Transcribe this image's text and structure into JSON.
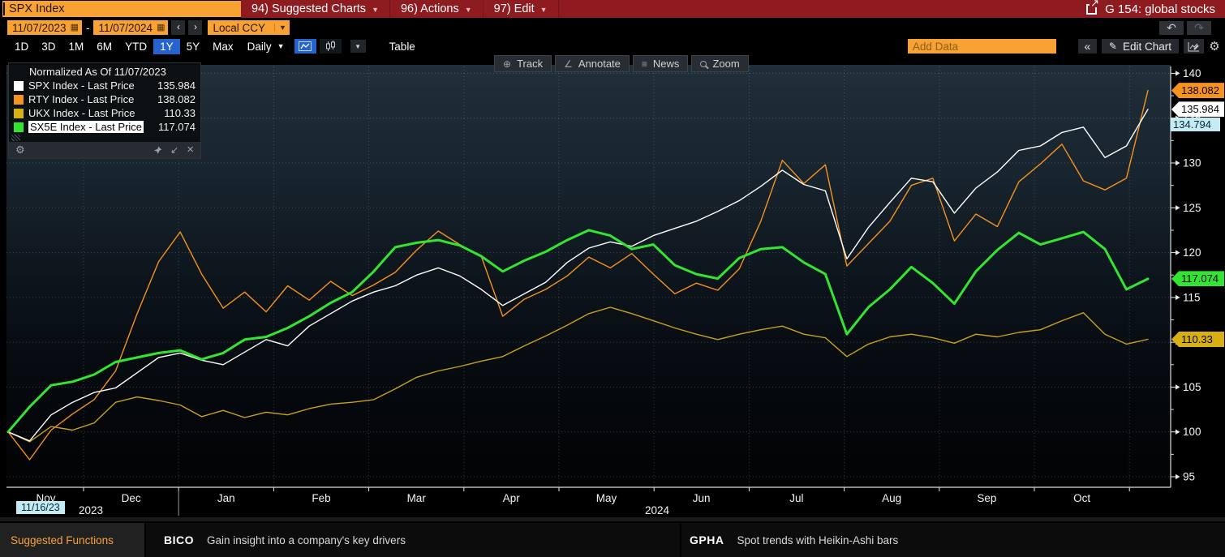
{
  "titlebar": {
    "ticker": "SPX Index",
    "menu": [
      {
        "label": "94) Suggested Charts"
      },
      {
        "label": "96) Actions"
      },
      {
        "label": "97) Edit"
      }
    ],
    "page_tag": "G 154: global stocks"
  },
  "datebar": {
    "start": "11/07/2023",
    "dash": "-",
    "end": "11/07/2024",
    "ccy": "Local CCY"
  },
  "toolbar": {
    "ranges": [
      "1D",
      "3D",
      "1M",
      "6M",
      "YTD",
      "1Y",
      "5Y",
      "Max"
    ],
    "active_range": "1Y",
    "frequency": "Daily",
    "table_label": "Table",
    "add_data_placeholder": "Add Data",
    "edit_chart_label": "Edit Chart"
  },
  "chart_toolbar": [
    "Track",
    "Annotate",
    "News",
    "Zoom"
  ],
  "legend": {
    "title": "Normalized As Of 11/07/2023",
    "items": [
      {
        "label": "SPX Index - Last Price",
        "value": "135.984",
        "color": "#ffffff",
        "highlight": false
      },
      {
        "label": "RTY Index - Last Price",
        "value": "138.082",
        "color": "#f6921e",
        "highlight": false
      },
      {
        "label": "UKX Index - Last Price",
        "value": "110.33",
        "color": "#d9b013",
        "highlight": false
      },
      {
        "label": "SX5E Index - Last Price",
        "value": "117.074",
        "color": "#33e533",
        "highlight": true
      }
    ]
  },
  "chart_data": {
    "type": "line",
    "title": "Normalized As Of 11/07/2023",
    "x_range": [
      "11/07/2023",
      "11/07/2024"
    ],
    "x_month_labels": [
      "Nov",
      "Dec",
      "Jan",
      "Feb",
      "Mar",
      "Apr",
      "May",
      "Jun",
      "Jul",
      "Aug",
      "Sep",
      "Oct"
    ],
    "year_labels": [
      "2023",
      "2024"
    ],
    "x_cursor_tag": "11/16/23",
    "y_ticks": [
      95,
      100,
      105,
      110,
      115,
      120,
      125,
      130,
      135,
      140
    ],
    "ylim": [
      95,
      140
    ],
    "grid": true,
    "legend_position": "top-left",
    "series": [
      {
        "name": "UKX Index - Last Price",
        "color": "#c9a11a",
        "width": 1.4,
        "last": 110.33,
        "values": [
          100,
          98.9,
          100.6,
          100.2,
          101.0,
          103.3,
          103.9,
          103.5,
          103.0,
          101.7,
          102.4,
          101.6,
          102.2,
          101.9,
          102.6,
          103.1,
          103.3,
          103.6,
          104.8,
          106.1,
          106.8,
          107.3,
          107.9,
          108.4,
          109.6,
          110.7,
          111.9,
          113.2,
          113.9,
          113.2,
          112.4,
          111.6,
          110.9,
          110.3,
          110.9,
          111.4,
          111.8,
          110.9,
          110.5,
          108.4,
          109.8,
          110.6,
          110.9,
          110.5,
          109.9,
          110.9,
          110.6,
          111.1,
          111.4,
          112.4,
          113.3,
          110.9,
          109.8,
          110.33
        ]
      },
      {
        "name": "RTY Index - Last Price",
        "color": "#f6921e",
        "width": 1.4,
        "last": 138.082,
        "values": [
          100,
          96.9,
          100.2,
          102.0,
          103.6,
          106.8,
          113.2,
          119.0,
          122.3,
          117.6,
          113.8,
          115.6,
          113.4,
          116.3,
          114.7,
          116.8,
          115.2,
          116.4,
          117.8,
          120.3,
          122.4,
          120.9,
          119.6,
          112.9,
          114.8,
          115.9,
          117.4,
          119.5,
          118.3,
          119.9,
          117.6,
          115.4,
          116.6,
          115.8,
          118.2,
          123.5,
          130.3,
          127.7,
          129.8,
          118.5,
          121.0,
          123.5,
          127.5,
          128.3,
          121.3,
          124.3,
          122.9,
          127.9,
          129.9,
          132.1,
          128.0,
          127.0,
          128.3,
          138.082
        ]
      },
      {
        "name": "SPX Index - Last Price",
        "color": "#ffffff",
        "width": 1.4,
        "last": 135.984,
        "values": [
          100,
          99.0,
          101.9,
          103.3,
          104.4,
          104.9,
          106.6,
          108.3,
          108.8,
          108.0,
          107.5,
          108.9,
          110.3,
          109.6,
          111.8,
          113.2,
          114.6,
          115.6,
          116.3,
          117.5,
          118.3,
          117.4,
          115.9,
          114.1,
          115.4,
          116.7,
          118.9,
          120.5,
          121.2,
          120.7,
          121.9,
          122.7,
          123.5,
          124.6,
          125.8,
          127.4,
          129.2,
          127.6,
          126.9,
          119.3,
          122.8,
          125.6,
          128.3,
          127.9,
          124.4,
          127.2,
          129.0,
          131.4,
          131.9,
          133.4,
          134.0,
          130.6,
          131.9,
          135.984
        ]
      },
      {
        "name": "SX5E Index - Last Price",
        "color": "#33e533",
        "width": 3,
        "last": 117.074,
        "values": [
          100,
          102.8,
          105.2,
          105.6,
          106.4,
          107.8,
          108.3,
          108.8,
          109.1,
          108.1,
          108.8,
          110.3,
          110.6,
          111.6,
          112.9,
          114.4,
          115.6,
          117.9,
          120.6,
          121.1,
          121.4,
          120.8,
          119.6,
          117.9,
          119.1,
          120.1,
          121.4,
          122.5,
          121.9,
          120.4,
          120.9,
          118.6,
          117.6,
          117.1,
          119.4,
          120.4,
          120.6,
          118.9,
          117.6,
          110.9,
          113.9,
          115.9,
          118.4,
          116.6,
          114.3,
          117.9,
          120.3,
          122.2,
          120.9,
          121.6,
          122.3,
          120.4,
          115.9,
          117.074
        ]
      }
    ],
    "price_tags": [
      {
        "text": "138.082",
        "value": 138.082,
        "bg": "#f6921e",
        "fg": "#000000",
        "flat": false
      },
      {
        "text": "135.984",
        "value": 135.984,
        "bg": "#ffffff",
        "fg": "#000000",
        "flat": false
      },
      {
        "text": "134.794",
        "value": 134.794,
        "bg": "#c5ecf4",
        "fg": "#072531",
        "flat": true
      },
      {
        "text": "117.074",
        "value": 117.074,
        "bg": "#33e533",
        "fg": "#000000",
        "flat": false
      },
      {
        "text": "110.33",
        "value": 110.33,
        "bg": "#d9b013",
        "fg": "#000000",
        "flat": false
      }
    ]
  },
  "statusbar": {
    "left": "Suggested Functions",
    "items": [
      {
        "code": "BICO",
        "desc": "Gain insight into a company's key drivers"
      },
      {
        "code": "GPHA",
        "desc": "Spot trends with Heikin-Ashi bars"
      }
    ]
  }
}
